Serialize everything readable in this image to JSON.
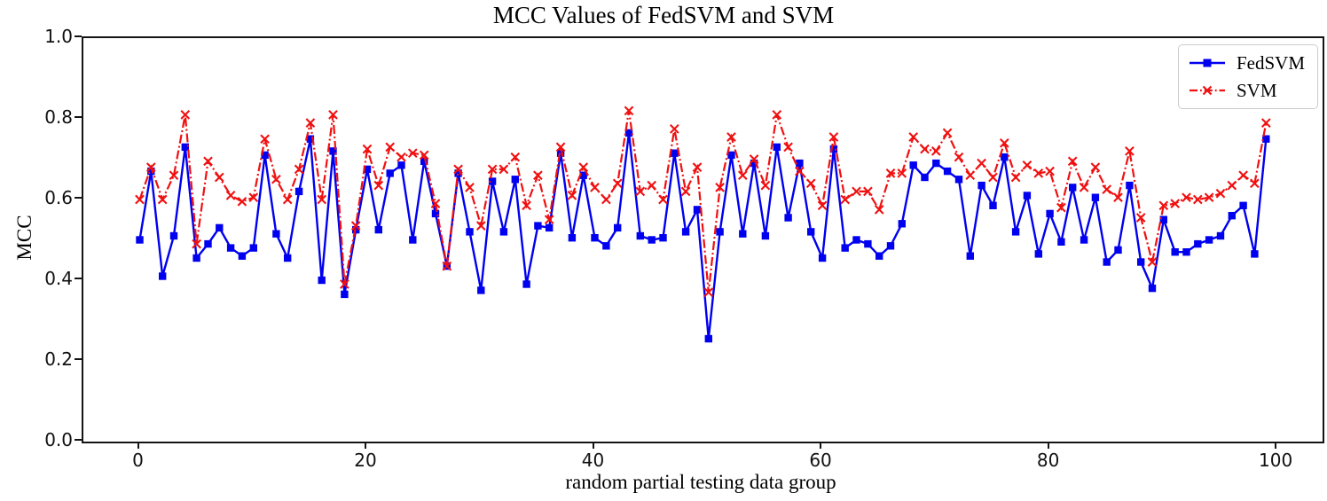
{
  "chart_data": {
    "type": "line",
    "title": "MCC Values of FedSVM and SVM",
    "xlabel": "random partial testing data group",
    "ylabel": "MCC",
    "n_points": 100,
    "x_start": 0,
    "x_step": 1,
    "xlim": [
      -5,
      104
    ],
    "ylim": [
      0,
      1
    ],
    "xtick_values": [
      0,
      20,
      40,
      60,
      80,
      100
    ],
    "xtick_labels": [
      "0",
      "20",
      "40",
      "60",
      "80",
      "100"
    ],
    "ytick_values": [
      0,
      0.2,
      0.4,
      0.6,
      0.8,
      1.0
    ],
    "ytick_labels": [
      "0.0",
      "0.2",
      "0.4",
      "0.6",
      "0.8",
      "1.0"
    ],
    "grid": false,
    "legend_position": "upper right",
    "series": [
      {
        "name": "FedSVM",
        "color": "#0000f0",
        "line_style": "solid",
        "marker": "square",
        "values": [
          0.5,
          0.67,
          0.41,
          0.51,
          0.73,
          0.455,
          0.49,
          0.53,
          0.48,
          0.46,
          0.48,
          0.71,
          0.515,
          0.455,
          0.62,
          0.75,
          0.4,
          0.72,
          0.365,
          0.525,
          0.675,
          0.525,
          0.665,
          0.685,
          0.5,
          0.695,
          0.565,
          0.435,
          0.665,
          0.52,
          0.375,
          0.645,
          0.52,
          0.65,
          0.39,
          0.535,
          0.53,
          0.715,
          0.505,
          0.66,
          0.505,
          0.485,
          0.53,
          0.765,
          0.51,
          0.5,
          0.505,
          0.715,
          0.52,
          0.575,
          0.255,
          0.52,
          0.71,
          0.515,
          0.69,
          0.51,
          0.73,
          0.555,
          0.69,
          0.52,
          0.455,
          0.725,
          0.48,
          0.5,
          0.49,
          0.46,
          0.485,
          0.54,
          0.685,
          0.655,
          0.69,
          0.67,
          0.65,
          0.46,
          0.635,
          0.585,
          0.705,
          0.52,
          0.61,
          0.465,
          0.565,
          0.495,
          0.63,
          0.5,
          0.605,
          0.445,
          0.475,
          0.635,
          0.445,
          0.38,
          0.55,
          0.47,
          0.47,
          0.49,
          0.5,
          0.51,
          0.56,
          0.585,
          0.465,
          0.75
        ]
      },
      {
        "name": "SVM",
        "color": "#f01010",
        "line_style": "dashdot",
        "marker": "x",
        "values": [
          0.6,
          0.68,
          0.6,
          0.66,
          0.81,
          0.49,
          0.695,
          0.655,
          0.61,
          0.595,
          0.605,
          0.75,
          0.65,
          0.6,
          0.675,
          0.79,
          0.6,
          0.81,
          0.39,
          0.535,
          0.725,
          0.635,
          0.73,
          0.705,
          0.715,
          0.71,
          0.59,
          0.435,
          0.675,
          0.63,
          0.535,
          0.675,
          0.675,
          0.705,
          0.585,
          0.66,
          0.55,
          0.73,
          0.61,
          0.68,
          0.63,
          0.6,
          0.64,
          0.82,
          0.62,
          0.635,
          0.6,
          0.775,
          0.62,
          0.68,
          0.37,
          0.63,
          0.755,
          0.66,
          0.7,
          0.635,
          0.81,
          0.73,
          0.67,
          0.64,
          0.585,
          0.755,
          0.6,
          0.62,
          0.62,
          0.575,
          0.665,
          0.665,
          0.755,
          0.725,
          0.72,
          0.765,
          0.705,
          0.66,
          0.69,
          0.655,
          0.74,
          0.655,
          0.685,
          0.665,
          0.67,
          0.58,
          0.695,
          0.63,
          0.68,
          0.625,
          0.605,
          0.72,
          0.555,
          0.445,
          0.585,
          0.59,
          0.605,
          0.6,
          0.605,
          0.615,
          0.635,
          0.66,
          0.64,
          0.79
        ]
      }
    ]
  }
}
